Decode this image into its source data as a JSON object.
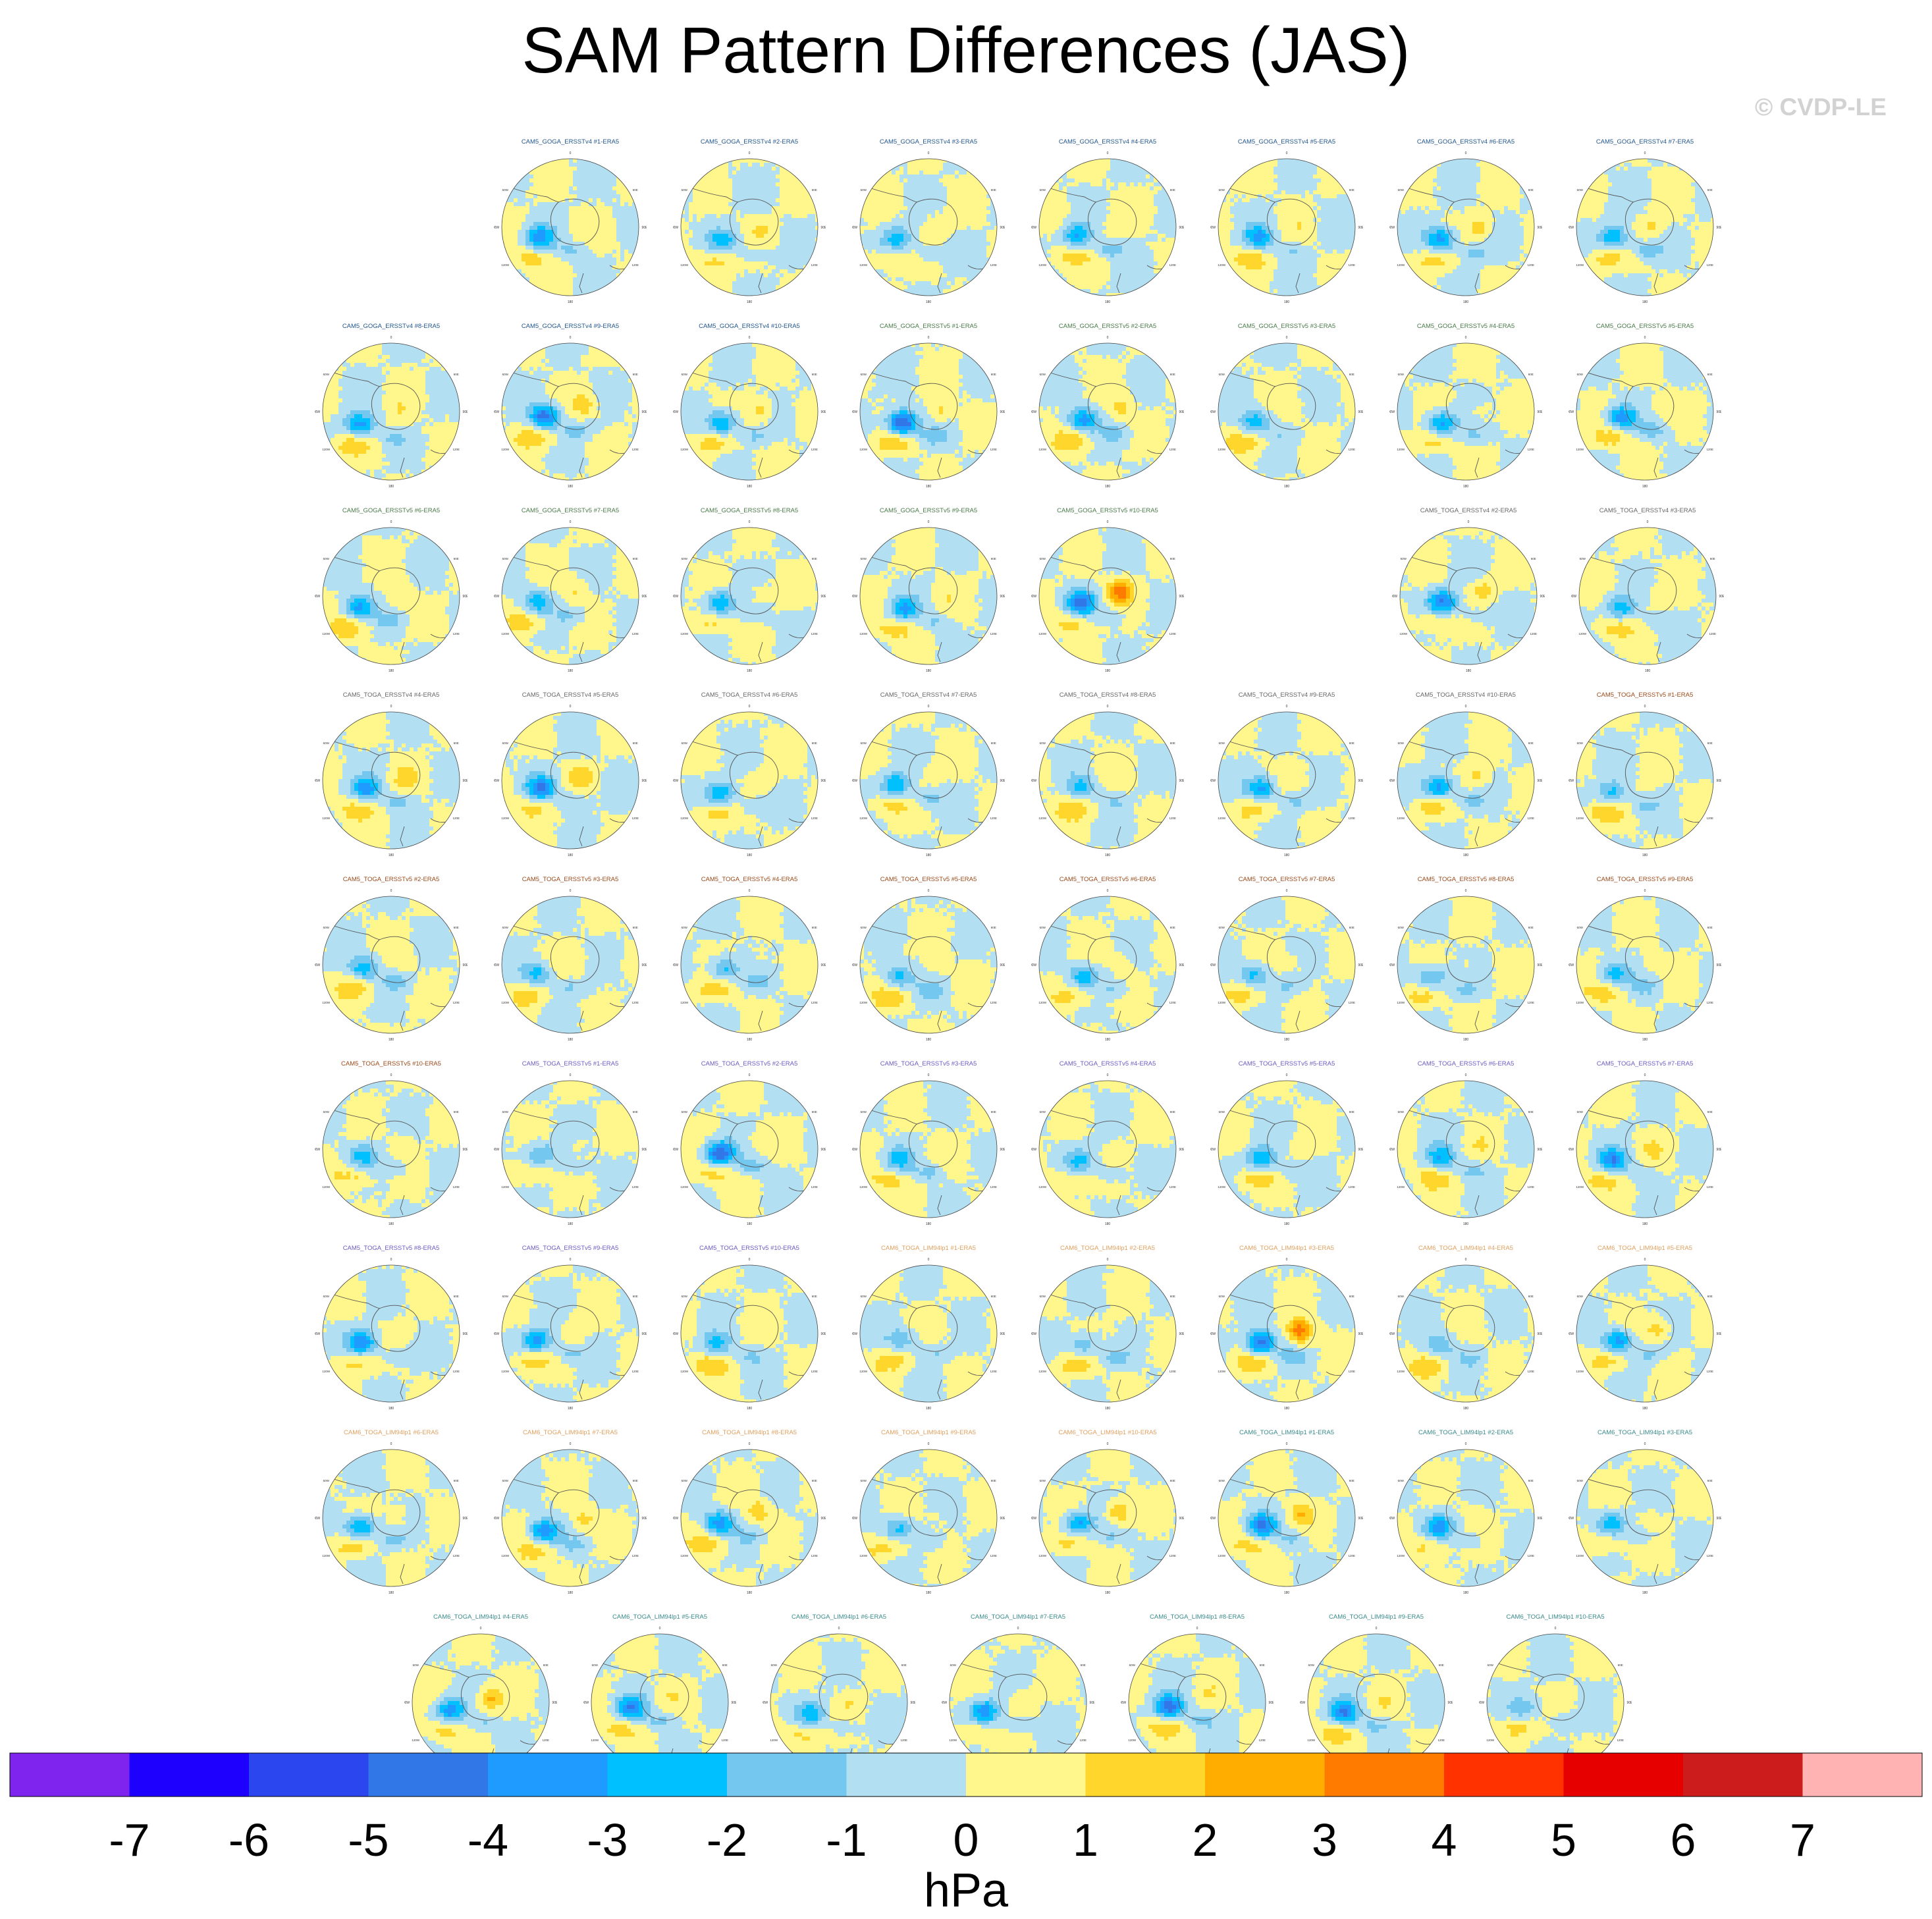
{
  "title": "SAM Pattern Differences (JAS)",
  "watermark": "© CVDP-LE",
  "colorbar": {
    "levels": [
      -7,
      -6,
      -5,
      -4,
      -3,
      -2,
      -1,
      0,
      1,
      2,
      3,
      4,
      5,
      6,
      7
    ],
    "colors": [
      "#7f23ee",
      "#1e00ff",
      "#2b46ee",
      "#3277e8",
      "#1f9bff",
      "#00c0ff",
      "#74c8f0",
      "#b2dff2",
      "#fff68c",
      "#ffd62b",
      "#ffae00",
      "#ff7b00",
      "#ff3200",
      "#e70000",
      "#cd1c1c",
      "#ffb3b3"
    ],
    "unit": "hPa"
  },
  "chart_data": {
    "type": "heatmap",
    "title": "SAM Pattern Differences (JAS)",
    "projection": "south-polar-stereographic",
    "lon_labels": [
      "0",
      "30E",
      "60E",
      "90E",
      "120E",
      "150E",
      "180",
      "150W",
      "120W",
      "90W",
      "60W",
      "30W"
    ],
    "label_colors": {
      "goga_v4": "#23568c",
      "goga_v5": "#4a7a4a",
      "toga_v4": "#666666",
      "toga_v5": "#9a4a1a",
      "toga_v5b": "#6b5bc2",
      "lim": "#e0a060",
      "lim2": "#3a8a8a"
    },
    "panels": [
      {
        "label": "CAM5_GOGA_ERSSTv4 #1-ERA5",
        "lc": "goga_v4",
        "a": -3.6,
        "b": -1.2,
        "c": 0.5
      },
      {
        "label": "CAM5_GOGA_ERSSTv4 #2-ERA5",
        "lc": "goga_v4",
        "a": -2.5,
        "b": -1.0,
        "c": 1.0
      },
      {
        "label": "CAM5_GOGA_ERSSTv4 #3-ERA5",
        "lc": "goga_v4",
        "a": -2.6,
        "b": -1.3,
        "c": 0.9
      },
      {
        "label": "CAM5_GOGA_ERSSTv4 #4-ERA5",
        "lc": "goga_v4",
        "a": -3.0,
        "b": -1.5,
        "c": 0.6
      },
      {
        "label": "CAM5_GOGA_ERSSTv4 #5-ERA5",
        "lc": "goga_v4",
        "a": -3.2,
        "b": -1.0,
        "c": 0.4
      },
      {
        "label": "CAM5_GOGA_ERSSTv4 #6-ERA5",
        "lc": "goga_v4",
        "a": -3.6,
        "b": -1.6,
        "c": 1.3
      },
      {
        "label": "CAM5_GOGA_ERSSTv4 #7-ERA5",
        "lc": "goga_v4",
        "a": -3.0,
        "b": -1.8,
        "c": 1.2
      },
      {
        "label": "CAM5_GOGA_ERSSTv4 #8-ERA5",
        "lc": "goga_v4",
        "a": -3.5,
        "b": -1.0,
        "c": 0.8
      },
      {
        "label": "CAM5_GOGA_ERSSTv4 #9-ERA5",
        "lc": "goga_v4",
        "a": -4.5,
        "b": -1.4,
        "c": 1.6
      },
      {
        "label": "CAM5_GOGA_ERSSTv4 #10-ERA5",
        "lc": "goga_v4",
        "a": -3.3,
        "b": -1.2,
        "c": 1.5
      },
      {
        "label": "CAM5_GOGA_ERSSTv5 #1-ERA5",
        "lc": "goga_v5",
        "a": -5.6,
        "b": -1.5,
        "c": 1.4
      },
      {
        "label": "CAM5_GOGA_ERSSTv5 #2-ERA5",
        "lc": "goga_v5",
        "a": -3.4,
        "b": -1.3,
        "c": 1.4
      },
      {
        "label": "CAM5_GOGA_ERSSTv5 #3-ERA5",
        "lc": "goga_v5",
        "a": -2.7,
        "b": -0.8,
        "c": 0.4
      },
      {
        "label": "CAM5_GOGA_ERSSTv5 #4-ERA5",
        "lc": "goga_v5",
        "a": -3.5,
        "b": -1.2,
        "c": 0.7
      },
      {
        "label": "CAM5_GOGA_ERSSTv5 #5-ERA5",
        "lc": "goga_v5",
        "a": -3.6,
        "b": -1.4,
        "c": 0.6
      },
      {
        "label": "CAM5_GOGA_ERSSTv5 #6-ERA5",
        "lc": "goga_v5",
        "a": -3.5,
        "b": -1.1,
        "c": 0.8
      },
      {
        "label": "CAM5_GOGA_ERSSTv5 #7-ERA5",
        "lc": "goga_v5",
        "a": -2.6,
        "b": -1.2,
        "c": 1.0
      },
      {
        "label": "CAM5_GOGA_ERSSTv5 #8-ERA5",
        "lc": "goga_v5",
        "a": -3.0,
        "b": -0.9,
        "c": 0.7
      },
      {
        "label": "CAM5_GOGA_ERSSTv5 #9-ERA5",
        "lc": "goga_v5",
        "a": -3.0,
        "b": -1.1,
        "c": 0.6
      },
      {
        "label": "CAM5_GOGA_ERSSTv5 #10-ERA5",
        "lc": "goga_v5",
        "a": -4.3,
        "b": -1.0,
        "c": 3.4
      },
      {
        "label": "CAM5_TOGA_ERSSTv4 #2-ERA5",
        "lc": "toga_v4",
        "a": -4.0,
        "b": -1.1,
        "c": 1.5
      },
      {
        "label": "CAM5_TOGA_ERSSTv4 #3-ERA5",
        "lc": "toga_v4",
        "a": -2.6,
        "b": -0.8,
        "c": 0.6
      },
      {
        "label": "CAM5_TOGA_ERSSTv4 #4-ERA5",
        "lc": "toga_v4",
        "a": -3.3,
        "b": -1.4,
        "c": 1.3
      },
      {
        "label": "CAM5_TOGA_ERSSTv4 #5-ERA5",
        "lc": "toga_v4",
        "a": -4.0,
        "b": -1.4,
        "c": 1.5
      },
      {
        "label": "CAM5_TOGA_ERSSTv4 #6-ERA5",
        "lc": "toga_v4",
        "a": -2.8,
        "b": -1.3,
        "c": 0.8
      },
      {
        "label": "CAM5_TOGA_ERSSTv4 #7-ERA5",
        "lc": "toga_v4",
        "a": -3.0,
        "b": -1.6,
        "c": 0.5
      },
      {
        "label": "CAM5_TOGA_ERSSTv4 #8-ERA5",
        "lc": "toga_v4",
        "a": -2.2,
        "b": -1.0,
        "c": 0.4
      },
      {
        "label": "CAM5_TOGA_ERSSTv4 #9-ERA5",
        "lc": "toga_v4",
        "a": -3.3,
        "b": -1.3,
        "c": 0.5
      },
      {
        "label": "CAM5_TOGA_ERSSTv4 #10-ERA5",
        "lc": "toga_v4",
        "a": -3.8,
        "b": -1.2,
        "c": 1.4
      },
      {
        "label": "CAM5_TOGA_ERSSTv5 #1-ERA5",
        "lc": "toga_v5",
        "a": -2.5,
        "b": -1.0,
        "c": 0.5
      },
      {
        "label": "CAM5_TOGA_ERSSTv5 #2-ERA5",
        "lc": "toga_v5",
        "a": -2.7,
        "b": -1.4,
        "c": 0.7
      },
      {
        "label": "CAM5_TOGA_ERSSTv5 #3-ERA5",
        "lc": "toga_v5",
        "a": -2.4,
        "b": -1.2,
        "c": 0.6
      },
      {
        "label": "CAM5_TOGA_ERSSTv5 #4-ERA5",
        "lc": "toga_v5",
        "a": -2.5,
        "b": -1.3,
        "c": 0.5
      },
      {
        "label": "CAM5_TOGA_ERSSTv5 #5-ERA5",
        "lc": "toga_v5",
        "a": -2.6,
        "b": -1.3,
        "c": 0.5
      },
      {
        "label": "CAM5_TOGA_ERSSTv5 #6-ERA5",
        "lc": "toga_v5",
        "a": -2.5,
        "b": -1.2,
        "c": 0.6
      },
      {
        "label": "CAM5_TOGA_ERSSTv5 #7-ERA5",
        "lc": "toga_v5",
        "a": -2.4,
        "b": -1.3,
        "c": 0.5
      },
      {
        "label": "CAM5_TOGA_ERSSTv5 #8-ERA5",
        "lc": "toga_v5",
        "a": -2.4,
        "b": -1.2,
        "c": 0.6
      },
      {
        "label": "CAM5_TOGA_ERSSTv5 #9-ERA5",
        "lc": "toga_v5",
        "a": -2.5,
        "b": -1.3,
        "c": 0.5
      },
      {
        "label": "CAM5_TOGA_ERSSTv5 #10-ERA5",
        "lc": "toga_v5",
        "a": -2.4,
        "b": -1.2,
        "c": 0.6
      },
      {
        "label": "CAM5_TOGA_ERSSTv5 #1-ERA5",
        "lc": "toga_v5b",
        "a": -2.0,
        "b": -1.0,
        "c": 0.4
      },
      {
        "label": "CAM5_TOGA_ERSSTv5 #2-ERA5",
        "lc": "toga_v5b",
        "a": -5.0,
        "b": -1.5,
        "c": 0.8
      },
      {
        "label": "CAM5_TOGA_ERSSTv5 #3-ERA5",
        "lc": "toga_v5b",
        "a": -2.3,
        "b": -1.4,
        "c": 0.3
      },
      {
        "label": "CAM5_TOGA_ERSSTv5 #4-ERA5",
        "lc": "toga_v5b",
        "a": -2.2,
        "b": -1.2,
        "c": 0.3
      },
      {
        "label": "CAM5_TOGA_ERSSTv5 #5-ERA5",
        "lc": "toga_v5b",
        "a": -3.0,
        "b": -1.0,
        "c": 0.6
      },
      {
        "label": "CAM5_TOGA_ERSSTv5 #6-ERA5",
        "lc": "toga_v5b",
        "a": -2.9,
        "b": -1.2,
        "c": 0.6
      },
      {
        "label": "CAM5_TOGA_ERSSTv5 #7-ERA5",
        "lc": "toga_v5b",
        "a": -3.6,
        "b": -1.0,
        "c": 0.8
      },
      {
        "label": "CAM5_TOGA_ERSSTv5 #8-ERA5",
        "lc": "toga_v5b",
        "a": -3.8,
        "b": -1.2,
        "c": 0.7
      },
      {
        "label": "CAM5_TOGA_ERSSTv5 #9-ERA5",
        "lc": "toga_v5b",
        "a": -3.4,
        "b": -1.4,
        "c": 0.9
      },
      {
        "label": "CAM5_TOGA_ERSSTv5 #10-ERA5",
        "lc": "toga_v5b",
        "a": -2.3,
        "b": -1.0,
        "c": 0.4
      },
      {
        "label": "CAM6_TOGA_LIM94lp1 #1-ERA5",
        "lc": "lim",
        "a": -1.8,
        "b": -1.0,
        "c": 0.3
      },
      {
        "label": "CAM6_TOGA_LIM94lp1 #2-ERA5",
        "lc": "lim",
        "a": -2.1,
        "b": -1.3,
        "c": 0.3
      },
      {
        "label": "CAM6_TOGA_LIM94lp1 #3-ERA5",
        "lc": "lim",
        "a": -4.8,
        "b": -1.2,
        "c": 3.8
      },
      {
        "label": "CAM6_TOGA_LIM94lp1 #4-ERA5",
        "lc": "lim",
        "a": -1.8,
        "b": -1.0,
        "c": 0.3
      },
      {
        "label": "CAM6_TOGA_LIM94lp1 #5-ERA5",
        "lc": "lim",
        "a": -3.5,
        "b": -1.2,
        "c": 1.6
      },
      {
        "label": "CAM6_TOGA_LIM94lp1 #6-ERA5",
        "lc": "lim",
        "a": -3.6,
        "b": -1.3,
        "c": 0.8
      },
      {
        "label": "CAM6_TOGA_LIM94lp1 #7-ERA5",
        "lc": "lim",
        "a": -3.8,
        "b": -1.0,
        "c": 1.4
      },
      {
        "label": "CAM6_TOGA_LIM94lp1 #8-ERA5",
        "lc": "lim",
        "a": -3.5,
        "b": -1.2,
        "c": 1.6
      },
      {
        "label": "CAM6_TOGA_LIM94lp1 #9-ERA5",
        "lc": "lim",
        "a": -2.3,
        "b": -1.0,
        "c": 0.4
      },
      {
        "label": "CAM6_TOGA_LIM94lp1 #10-ERA5",
        "lc": "lim",
        "a": -3.3,
        "b": -1.1,
        "c": 2.2
      },
      {
        "label": "CAM6_TOGA_LIM94lp1 #1-ERA5",
        "lc": "lim2",
        "a": -4.0,
        "b": -1.1,
        "c": 1.9
      },
      {
        "label": "CAM6_TOGA_LIM94lp1 #2-ERA5",
        "lc": "lim2",
        "a": -3.2,
        "b": -1.0,
        "c": 0.5
      },
      {
        "label": "CAM6_TOGA_LIM94lp1 #3-ERA5",
        "lc": "lim2",
        "a": -2.6,
        "b": -0.9,
        "c": 0.4
      },
      {
        "label": "CAM6_TOGA_LIM94lp1 #4-ERA5",
        "lc": "lim2",
        "a": -3.6,
        "b": -1.2,
        "c": 2.2
      },
      {
        "label": "CAM6_TOGA_LIM94lp1 #5-ERA5",
        "lc": "lim2",
        "a": -3.6,
        "b": -1.4,
        "c": 0.6
      },
      {
        "label": "CAM6_TOGA_LIM94lp1 #6-ERA5",
        "lc": "lim2",
        "a": -2.5,
        "b": -1.0,
        "c": 0.7
      },
      {
        "label": "CAM6_TOGA_LIM94lp1 #7-ERA5",
        "lc": "lim2",
        "a": -3.6,
        "b": -1.2,
        "c": 0.8
      },
      {
        "label": "CAM6_TOGA_LIM94lp1 #8-ERA5",
        "lc": "lim2",
        "a": -4.6,
        "b": -1.2,
        "c": 0.7
      },
      {
        "label": "CAM6_TOGA_LIM94lp1 #9-ERA5",
        "lc": "lim2",
        "a": -3.8,
        "b": -1.4,
        "c": 0.6
      },
      {
        "label": "CAM6_TOGA_LIM94lp1 #10-ERA5",
        "lc": "lim2",
        "a": -1.6,
        "b": -0.8,
        "c": 0.5
      }
    ]
  }
}
